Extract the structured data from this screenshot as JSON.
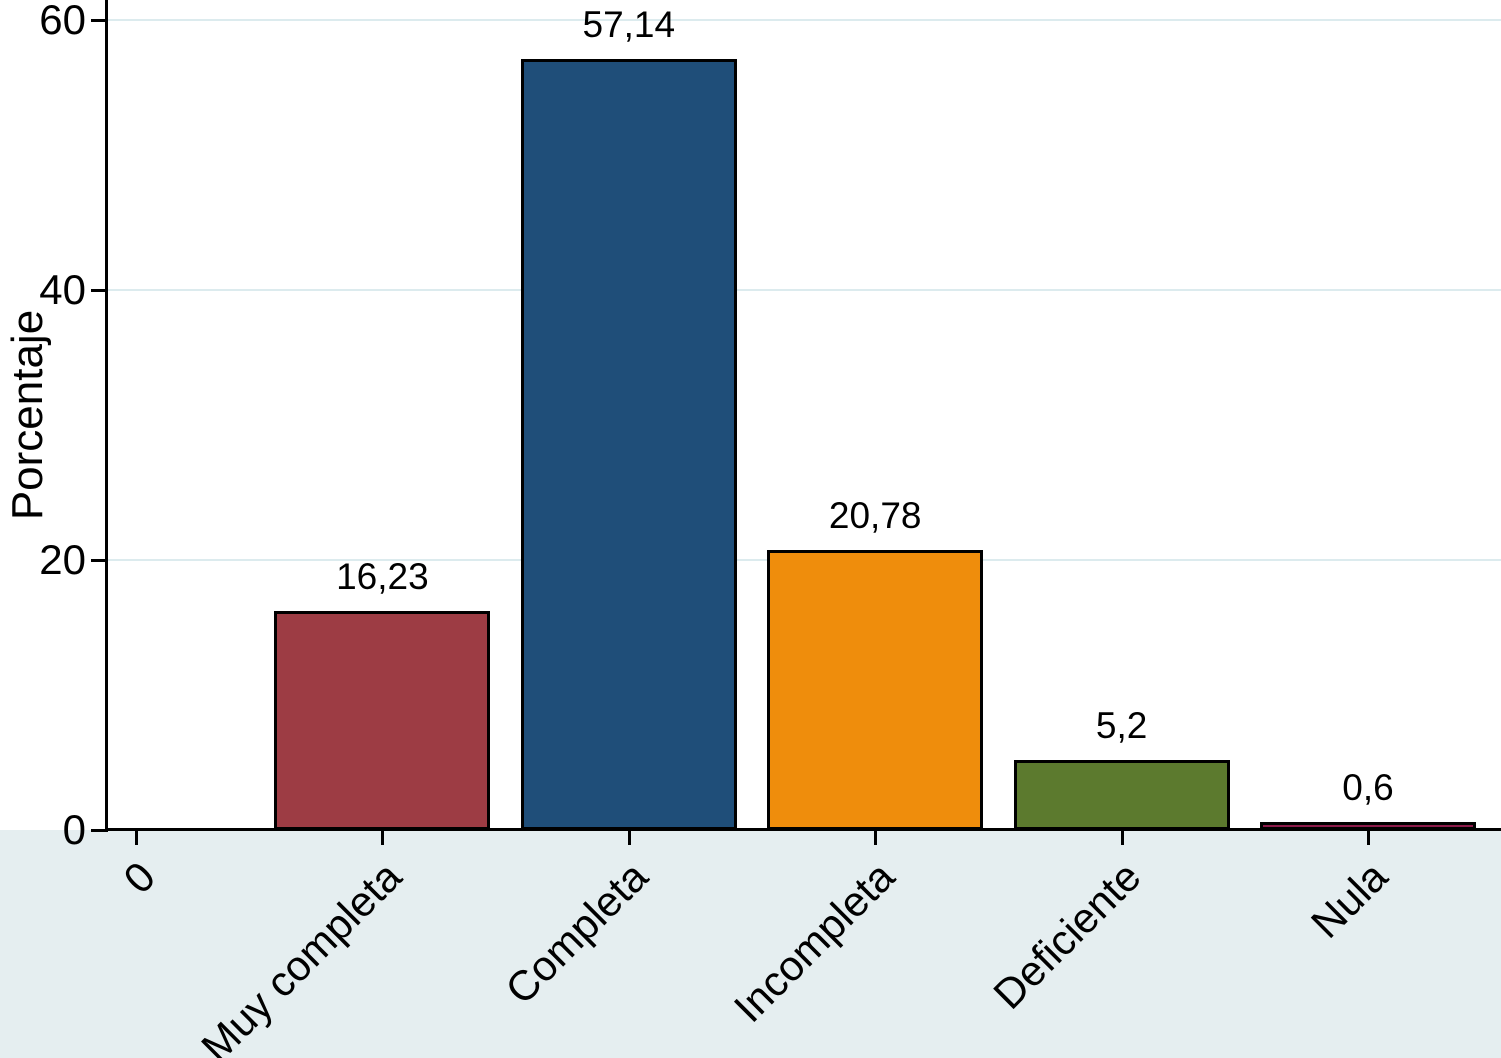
{
  "chart_data": {
    "type": "bar",
    "title": "",
    "ylabel": "Porcentaje",
    "xlabel": "",
    "ylim": [
      0,
      61.5
    ],
    "yticks": [
      0,
      20,
      40,
      60
    ],
    "x_first_tick_label": "0",
    "categories": [
      "Muy completa",
      "Completa",
      "Incompleta",
      "Deficiente",
      "Nula"
    ],
    "values": [
      16.23,
      57.14,
      20.78,
      5.2,
      0.6
    ],
    "value_labels": [
      "16,23",
      "57,14",
      "20,78",
      "5,2",
      "0,6"
    ],
    "bar_colors": [
      "#9d3c44",
      "#1f4e79",
      "#ef8d0c",
      "#5c7a2e",
      "#8b1a4a"
    ],
    "grid": true,
    "legend": "none"
  },
  "colors": {
    "background": "#ffffff",
    "axis_area_background": "#e5eef0",
    "plot_background": "#ffffff",
    "gridline": "#dcebee",
    "axis": "#000000",
    "text": "#000000",
    "bar_outline": "#000000"
  }
}
